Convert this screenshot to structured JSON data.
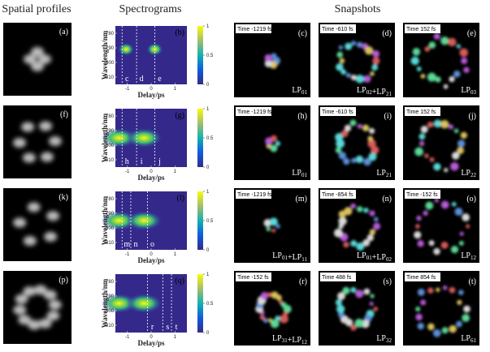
{
  "headers": {
    "spatial": "Spatial profiles",
    "spectrograms": "Spectrograms",
    "snapshots": "Snapshots"
  },
  "spectrogram_axes": {
    "ylabel": "Wavelength/nm",
    "xlabel": "Delay/ps",
    "ylim": [
      775,
      815
    ],
    "yticks": [
      780,
      790,
      800,
      810
    ],
    "xlim": [
      -1500,
      1500
    ],
    "xticks": [
      {
        "value": -1000,
        "label": "-1"
      },
      {
        "value": 0,
        "label": "0"
      },
      {
        "value": 1000,
        "label": "1"
      }
    ],
    "colorbar_ticks": [
      0,
      0.5,
      1
    ]
  },
  "rows": [
    {
      "spatial": "(a)",
      "spectrogram": {
        "label": "(b)",
        "markers": [
          "c",
          "d",
          "e"
        ]
      },
      "snapshots": [
        {
          "label": "(c)",
          "time": {
            "value": -1219,
            "label": "Time -1219 fs"
          },
          "mode": [
            {
              "prefix": "LP",
              "sub": "01"
            }
          ]
        },
        {
          "label": "(d)",
          "time": {
            "value": -610,
            "label": "Time -610 fs"
          },
          "mode": [
            {
              "prefix": "LP",
              "sub": "02"
            },
            {
              "prefix": "+LP",
              "sub": "21"
            }
          ]
        },
        {
          "label": "(e)",
          "time": {
            "value": 152,
            "label": "Time 152 fs"
          },
          "mode": [
            {
              "prefix": "LP",
              "sub": "03"
            }
          ]
        }
      ]
    },
    {
      "spatial": "(f)",
      "spectrogram": {
        "label": "(g)",
        "markers": [
          "h",
          "i",
          "j"
        ]
      },
      "snapshots": [
        {
          "label": "(h)",
          "time": {
            "value": -1219,
            "label": "Time -1219 fs"
          },
          "mode": [
            {
              "prefix": "LP",
              "sub": "01"
            }
          ]
        },
        {
          "label": "(i)",
          "time": {
            "value": -610,
            "label": "Time -610 fs"
          },
          "mode": [
            {
              "prefix": "LP",
              "sub": "21"
            }
          ]
        },
        {
          "label": "(j)",
          "time": {
            "value": 152,
            "label": "Time 152 fs"
          },
          "mode": [
            {
              "prefix": "LP",
              "sub": "22"
            }
          ]
        }
      ]
    },
    {
      "spatial": "(k)",
      "spectrogram": {
        "label": "(l)",
        "markers": [
          "m",
          "n",
          "o"
        ]
      },
      "snapshots": [
        {
          "label": "(m)",
          "time": {
            "value": -1219,
            "label": "Time -1219 fs"
          },
          "mode": [
            {
              "prefix": "LP",
              "sub": "01"
            },
            {
              "prefix": "+LP",
              "sub": "11"
            }
          ]
        },
        {
          "label": "(n)",
          "time": {
            "value": -854,
            "label": "Time -854 fs"
          },
          "mode": [
            {
              "prefix": "LP",
              "sub": "01"
            },
            {
              "prefix": "+LP",
              "sub": "02"
            }
          ]
        },
        {
          "label": "(o)",
          "time": {
            "value": -152,
            "label": "Time -152 fs"
          },
          "mode": [
            {
              "prefix": "LP",
              "sub": "12"
            }
          ]
        }
      ]
    },
    {
      "spatial": "(p)",
      "spectrogram": {
        "label": "(q)",
        "markers": [
          "r",
          "s",
          "t"
        ]
      },
      "snapshots": [
        {
          "label": "(r)",
          "time": {
            "value": -152,
            "label": "Time -152 fs"
          },
          "mode": [
            {
              "prefix": "LP",
              "sub": "31"
            },
            {
              "prefix": "+LP",
              "sub": "12"
            }
          ]
        },
        {
          "label": "(s)",
          "time": {
            "value": 488,
            "label": "Time 488 fs"
          },
          "mode": [
            {
              "prefix": "LP",
              "sub": "32"
            }
          ]
        },
        {
          "label": "(t)",
          "time": {
            "value": 854,
            "label": "Time 854 fs"
          },
          "mode": [
            {
              "prefix": "LP",
              "sub": "61"
            }
          ]
        }
      ]
    }
  ]
}
